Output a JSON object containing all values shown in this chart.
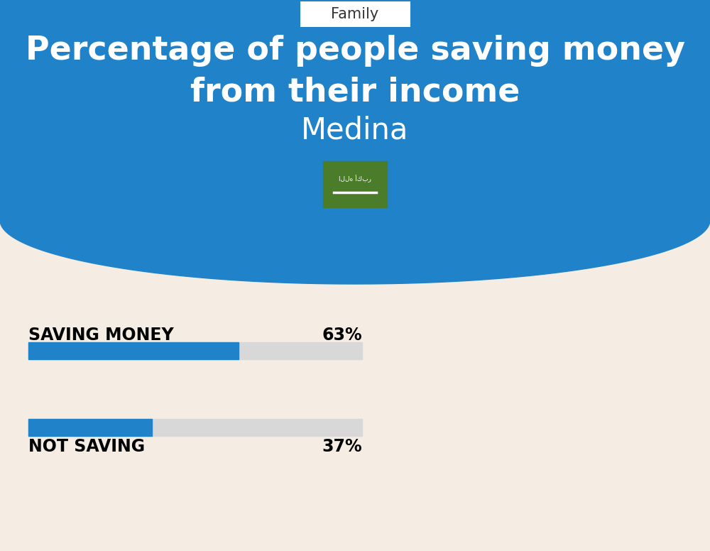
{
  "title_line1": "Percentage of people saving money",
  "title_line2": "from their income",
  "subtitle": "Medina",
  "tab_label": "Family",
  "bg_top_color": "#2082C8",
  "bg_bottom_color": "#F5EDE3",
  "bar_blue": "#2082C8",
  "bar_gray": "#D8D8D8",
  "saving_label": "SAVING MONEY",
  "saving_pct": "63%",
  "saving_value": 63,
  "not_saving_label": "NOT SAVING",
  "not_saving_pct": "37%",
  "not_saving_value": 37,
  "label_fontsize": 17,
  "pct_fontsize": 17,
  "title_fontsize": 33,
  "subtitle_fontsize": 30,
  "tab_fontsize": 15,
  "fig_width": 10.0,
  "fig_height": 7.76,
  "dpi": 100
}
